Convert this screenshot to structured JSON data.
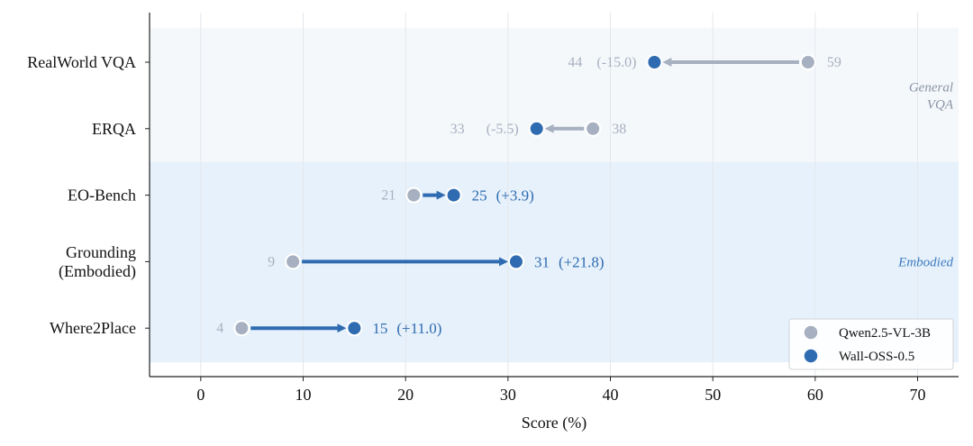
{
  "chart_data": {
    "type": "dumbbell",
    "xlabel": "Score (%)",
    "xlim": [
      -5,
      74
    ],
    "xticks": [
      0,
      10,
      20,
      30,
      40,
      50,
      60,
      70
    ],
    "grid": "vertical",
    "legend_position": "bottom-right",
    "series": [
      {
        "name": "Qwen2.5-VL-3B",
        "color": "#a7b0c0"
      },
      {
        "name": "Wall-OSS-0.5",
        "color": "#2e6bb0"
      }
    ],
    "groups": [
      {
        "name": "General\nVQA",
        "color": "#8a93a5",
        "background": "#f5f8fb",
        "categories": [
          "RealWorld VQA",
          "ERQA"
        ]
      },
      {
        "name": "Embodied",
        "color": "#3f7cc0",
        "background": "#e7f1fb",
        "categories": [
          "EO-Bench",
          "Grounding\n(Embodied)",
          "Where2Place"
        ]
      }
    ],
    "rows": [
      {
        "category": "RealWorld VQA",
        "baseline": 59.3,
        "model": 44.3,
        "baseline_label": "59",
        "model_label": "44",
        "delta_label": "(-15.0)",
        "improved": false
      },
      {
        "category": "ERQA",
        "baseline": 38.3,
        "model": 32.8,
        "baseline_label": "38",
        "model_label": "33",
        "delta_label": "(-5.5)",
        "improved": false
      },
      {
        "category": "EO-Bench",
        "baseline": 20.8,
        "model": 24.7,
        "baseline_label": "21",
        "model_label": "25",
        "delta_label": "(+3.9)",
        "improved": true
      },
      {
        "category": "Grounding\n(Embodied)",
        "baseline": 9.0,
        "model": 30.8,
        "baseline_label": "9",
        "model_label": "31",
        "delta_label": "(+21.8)",
        "improved": true
      },
      {
        "category": "Where2Place",
        "baseline": 4.0,
        "model": 15.0,
        "baseline_label": "4",
        "model_label": "15",
        "delta_label": "(+11.0)",
        "improved": true
      }
    ]
  }
}
